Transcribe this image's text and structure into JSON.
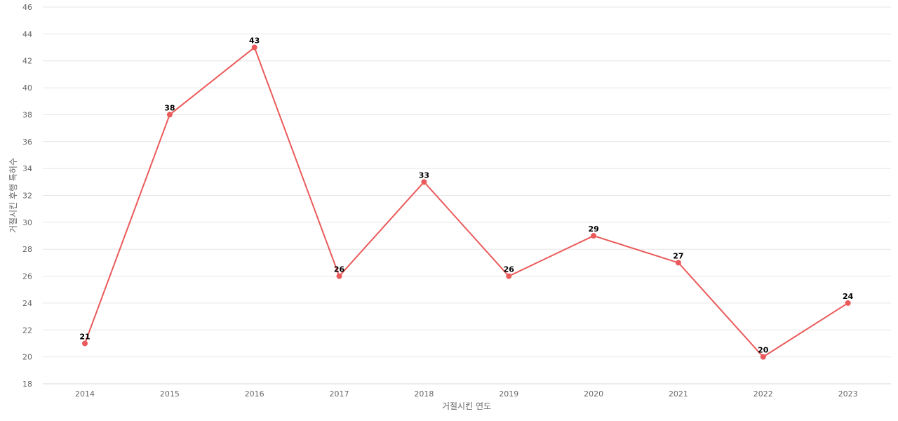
{
  "chart_data": {
    "type": "line",
    "title": "",
    "xlabel": "거절시킨 연도",
    "ylabel": "거절시킨 후행 특허수",
    "categories": [
      "2014",
      "2015",
      "2016",
      "2017",
      "2018",
      "2019",
      "2020",
      "2021",
      "2022",
      "2023"
    ],
    "series": [
      {
        "values": [
          21,
          38,
          43,
          26,
          33,
          26,
          29,
          27,
          20,
          24
        ],
        "color": "#eb5a5a"
      }
    ],
    "ylim": [
      18,
      46
    ],
    "yticks": [
      18,
      20,
      22,
      24,
      26,
      28,
      30,
      32,
      34,
      36,
      38,
      40,
      42,
      44,
      46
    ],
    "grid": true,
    "legend": "none",
    "data_labels": true
  }
}
